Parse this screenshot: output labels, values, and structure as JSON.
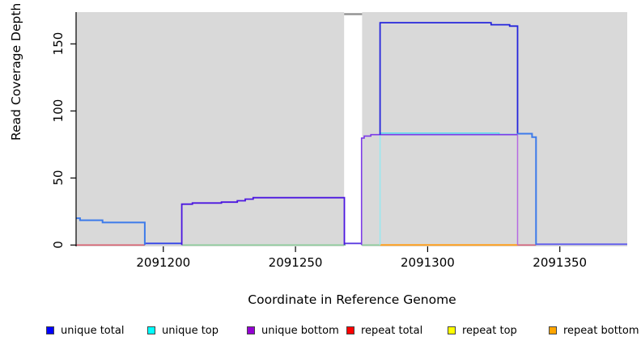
{
  "figure": {
    "plot_bg": "#D9D9D9",
    "background": "#FFFFFF",
    "axis_color": "#000000",
    "masked_band_color": "#FFFFFF",
    "masked_band_top_color": "#949494"
  },
  "axes": {
    "x": {
      "title": "Coordinate in Reference Genome",
      "tick_values": [
        2091200,
        2091250,
        2091300,
        2091350
      ],
      "tick_labels": [
        "2091200",
        "2091250",
        "2091300",
        "2091350"
      ]
    },
    "y": {
      "title": "Read Coverage Depth",
      "tick_values": [
        0,
        50,
        100,
        150
      ],
      "tick_labels": [
        "0",
        "50",
        "100",
        "150"
      ]
    }
  },
  "legend": {
    "position": "bottom",
    "items": [
      {
        "label": "unique total",
        "color": "#0000FF"
      },
      {
        "label": "unique top",
        "color": "#00FFFF"
      },
      {
        "label": "unique bottom",
        "color": "#9400D3"
      },
      {
        "label": "repeat total",
        "color": "#FF0000"
      },
      {
        "label": "repeat top",
        "color": "#FFFF00"
      },
      {
        "label": "repeat bottom",
        "color": "#FFA500"
      }
    ]
  },
  "chart_data": {
    "type": "line",
    "subtype": "step-coverage",
    "title": "",
    "xlabel": "Coordinate in Reference Genome",
    "ylabel": "Read Coverage Depth",
    "xlim": [
      2091167,
      2091375.5
    ],
    "ylim": [
      0,
      173.7
    ],
    "x_ticks": [
      2091200,
      2091250,
      2091300,
      2091350
    ],
    "y_ticks": [
      0,
      50,
      100,
      150
    ],
    "grid": false,
    "legend_position": "bottom",
    "masked_region": {
      "x_start": 2091268.4,
      "x_end": 2091275.2
    },
    "series": [
      {
        "name": "unique total",
        "color": "#0000FF",
        "steps": [
          [
            2091167,
            20
          ],
          [
            2091169,
            18.5
          ],
          [
            2091177,
            17
          ],
          [
            2091193,
            0
          ],
          [
            2091207,
            30
          ],
          [
            2091211,
            31
          ],
          [
            2091222,
            32
          ],
          [
            2091228,
            33
          ],
          [
            2091234,
            35
          ],
          [
            2091269,
            0
          ],
          [
            2091275,
            80
          ],
          [
            2091276,
            81
          ],
          [
            2091279,
            82
          ],
          [
            2091282,
            166
          ],
          [
            2091324,
            164
          ],
          [
            2091331,
            163
          ],
          [
            2091334,
            83
          ],
          [
            2091340,
            80
          ],
          [
            2091341,
            0
          ],
          [
            2091375,
            0
          ]
        ]
      },
      {
        "name": "unique top",
        "color": "#00FFFF",
        "steps": [
          [
            2091167,
            20
          ],
          [
            2091169,
            18.5
          ],
          [
            2091177,
            17
          ],
          [
            2091193,
            0
          ],
          [
            2091282,
            83.5
          ],
          [
            2091327,
            82.5
          ],
          [
            2091334,
            83
          ],
          [
            2091340,
            80
          ],
          [
            2091341,
            0
          ],
          [
            2091375,
            0
          ]
        ]
      },
      {
        "name": "unique bottom",
        "color": "#9400D3",
        "steps": [
          [
            2091167,
            0
          ],
          [
            2091207,
            30
          ],
          [
            2091211,
            31
          ],
          [
            2091222,
            32
          ],
          [
            2091228,
            33
          ],
          [
            2091234,
            35
          ],
          [
            2091269,
            0
          ],
          [
            2091275,
            80
          ],
          [
            2091276,
            81
          ],
          [
            2091279,
            82
          ],
          [
            2091334,
            0
          ],
          [
            2091375,
            0
          ]
        ]
      },
      {
        "name": "repeat total",
        "color": "#FF0000",
        "steps": [
          [
            2091167,
            0
          ],
          [
            2091375,
            0
          ]
        ]
      },
      {
        "name": "repeat top",
        "color": "#FFFF00",
        "steps": [
          [
            2091167,
            0
          ],
          [
            2091375,
            0
          ]
        ]
      },
      {
        "name": "repeat bottom",
        "color": "#FFA500",
        "steps": [
          [
            2091167,
            0
          ],
          [
            2091375,
            0
          ]
        ]
      }
    ],
    "rendered_segments": [
      {
        "name": "repeat-total-zero-left",
        "color": "#D96070",
        "width": 1.6,
        "dy": 0,
        "points": [
          [
            2091167,
            0
          ],
          [
            2091193,
            0
          ]
        ]
      },
      {
        "name": "blend-zero-green-mid",
        "color": "#8CCD9A",
        "width": 1.6,
        "dy": 0,
        "points": [
          [
            2091207,
            0
          ],
          [
            2091269,
            0
          ]
        ]
      },
      {
        "name": "blend-zero-green-mid2",
        "color": "#8CCD9A",
        "width": 1.6,
        "dy": 0,
        "points": [
          [
            2091275,
            0
          ],
          [
            2091282,
            0
          ]
        ]
      },
      {
        "name": "repeat-bottom-zero",
        "color": "#FFA01E",
        "width": 2,
        "dy": 0,
        "points": [
          [
            2091282,
            0
          ],
          [
            2091334,
            0
          ]
        ]
      },
      {
        "name": "repeat-total-zero-right",
        "color": "#D5607A",
        "width": 1.6,
        "dy": 0,
        "points": [
          [
            2091334,
            0
          ],
          [
            2091341,
            0
          ]
        ]
      },
      {
        "name": "blend-zero-blueviolet",
        "color": "#5F5AEC",
        "width": 1.8,
        "dy": -1,
        "points": [
          [
            2091341,
            0
          ],
          [
            2091375.5,
            0
          ]
        ]
      },
      {
        "name": "unique-bottom-drop",
        "color": "#B56AE2",
        "width": 1.5,
        "dy": 0,
        "points": [
          [
            2091334,
            82
          ],
          [
            2091334,
            0
          ]
        ]
      },
      {
        "name": "unique-top-rise",
        "color": "#99E8F0",
        "width": 1.5,
        "dy": 0,
        "points": [
          [
            2091282,
            0
          ],
          [
            2091282,
            83.5
          ]
        ]
      },
      {
        "name": "band-bottom-violet",
        "color": "#5A3BE0",
        "width": 1.8,
        "dy": -2,
        "points": [
          [
            2091268.5,
            0
          ],
          [
            2091275,
            0
          ]
        ]
      },
      {
        "name": "dip-blue",
        "color": "#3344E8",
        "width": 1.8,
        "dy": -2,
        "points": [
          [
            2091193,
            0
          ],
          [
            2091207,
            0
          ]
        ]
      },
      {
        "name": "unique-top-high",
        "color": "#55DDEE",
        "width": 1.5,
        "dy": 0,
        "points": [
          [
            2091282,
            83.5
          ],
          [
            2091327,
            83.5
          ],
          [
            2091327,
            82.5
          ],
          [
            2091334,
            82.5
          ]
        ]
      },
      {
        "name": "unique-bottom-right",
        "color": "#7C3AE8",
        "width": 1.6,
        "dy": 0,
        "points": [
          [
            2091275,
            0
          ],
          [
            2091275,
            79.8
          ],
          [
            2091276,
            79.8
          ],
          [
            2091276,
            81.3
          ],
          [
            2091278.5,
            81.3
          ],
          [
            2091278.5,
            82.3
          ],
          [
            2091334,
            82.3
          ]
        ]
      },
      {
        "name": "total-left-steps",
        "color": "#3D7BEA",
        "width": 2,
        "dy": 0,
        "points": [
          [
            2091167,
            20
          ],
          [
            2091168.5,
            20
          ],
          [
            2091168.5,
            18.5
          ],
          [
            2091177,
            18.5
          ],
          [
            2091177,
            16.8
          ],
          [
            2091193,
            16.8
          ],
          [
            2091193,
            0
          ]
        ]
      },
      {
        "name": "total-mid-steps",
        "color": "#4B16E0",
        "width": 1.8,
        "dy": 0,
        "points": [
          [
            2091207,
            0
          ],
          [
            2091207,
            30.5
          ],
          [
            2091211,
            30.5
          ],
          [
            2091211,
            31.3
          ],
          [
            2091222,
            31.3
          ],
          [
            2091222,
            32
          ],
          [
            2091228,
            32
          ],
          [
            2091228,
            33
          ],
          [
            2091231,
            33
          ],
          [
            2091231,
            34.2
          ],
          [
            2091234,
            34.2
          ],
          [
            2091234,
            35.3
          ],
          [
            2091268.5,
            35.3
          ],
          [
            2091268.5,
            0
          ]
        ]
      },
      {
        "name": "total-high-box",
        "color": "#2525DC",
        "width": 1.8,
        "dy": 0,
        "points": [
          [
            2091282,
            82.3
          ],
          [
            2091282,
            165.8
          ],
          [
            2091324,
            165.8
          ],
          [
            2091324,
            164.3
          ],
          [
            2091331,
            164.3
          ],
          [
            2091331,
            163.3
          ],
          [
            2091334,
            163.3
          ],
          [
            2091334,
            83
          ]
        ]
      },
      {
        "name": "total-right-steps",
        "color": "#3D7BEA",
        "width": 2,
        "dy": 0,
        "points": [
          [
            2091334,
            83
          ],
          [
            2091339.5,
            83
          ],
          [
            2091339.5,
            80.5
          ],
          [
            2091341,
            80.5
          ],
          [
            2091341,
            0
          ]
        ]
      },
      {
        "name": "band-top-gray",
        "color": "#949494",
        "width": 2.5,
        "dy": 0,
        "points": [
          [
            2091268.4,
            172.2
          ],
          [
            2091275.2,
            172.2
          ]
        ]
      }
    ]
  }
}
